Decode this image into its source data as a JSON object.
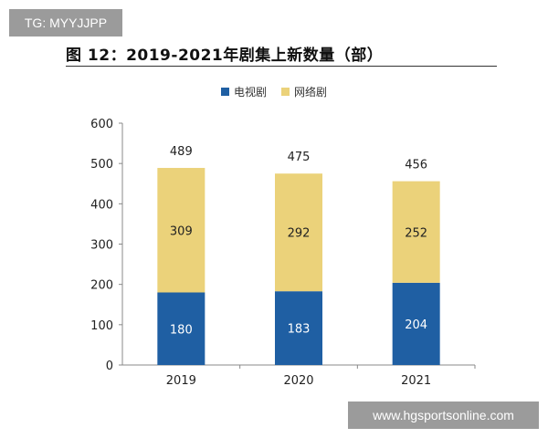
{
  "watermark_top": "TG: MYYJJPP",
  "watermark_bottom": "www.hgsportsonline.com",
  "chart_data": {
    "type": "bar",
    "stacked": true,
    "title": "图 12：2019-2021年剧集上新数量（部）",
    "categories": [
      "2019",
      "2020",
      "2021"
    ],
    "series": [
      {
        "name": "电视剧",
        "color": "#1f5fa3",
        "values": [
          180,
          183,
          204
        ]
      },
      {
        "name": "网络剧",
        "color": "#ebd27a",
        "values": [
          309,
          292,
          252
        ]
      }
    ],
    "totals": [
      489,
      475,
      456
    ],
    "ylim": [
      0,
      600
    ],
    "yticks": [
      0,
      100,
      200,
      300,
      400,
      500,
      600
    ],
    "legend_position": "top-center",
    "grid": false
  }
}
